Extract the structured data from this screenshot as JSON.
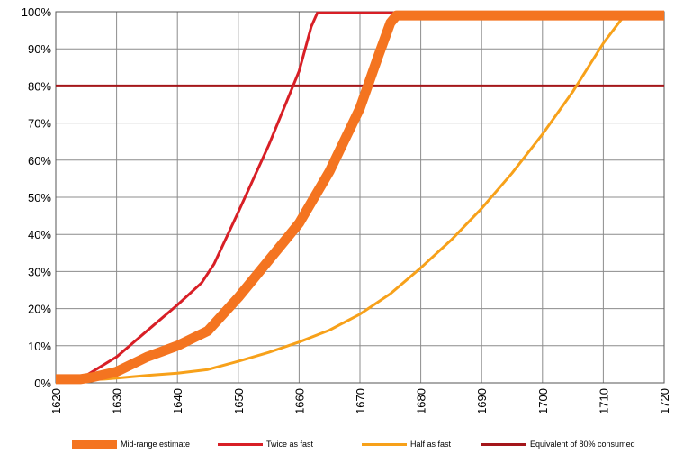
{
  "chart_data": {
    "type": "line",
    "x_range": [
      1620,
      1720
    ],
    "y_range": [
      0,
      100
    ],
    "x_ticks": [
      1620,
      1630,
      1640,
      1650,
      1660,
      1670,
      1680,
      1690,
      1700,
      1710,
      1720
    ],
    "y_ticks": [
      0,
      10,
      20,
      30,
      40,
      50,
      60,
      70,
      80,
      90,
      100
    ],
    "y_tick_labels": [
      "0%",
      "10%",
      "20%",
      "30%",
      "40%",
      "50%",
      "60%",
      "70%",
      "80%",
      "90%",
      "100%"
    ],
    "grid": true,
    "legend_position": "bottom",
    "series": [
      {
        "name": "Mid-range estimate",
        "color": "#f47420",
        "style": "thick",
        "x": [
          1620,
          1624,
          1626,
          1630,
          1635,
          1640,
          1645,
          1650,
          1655,
          1660,
          1665,
          1670,
          1673,
          1675,
          1676,
          1700,
          1720
        ],
        "y": [
          1,
          1,
          1.5,
          3,
          7,
          10,
          14,
          23,
          33,
          43,
          57,
          74,
          88,
          97,
          99,
          99,
          99
        ]
      },
      {
        "name": "Twice as fast",
        "color": "#d81f26",
        "style": "medium",
        "x": [
          1620,
          1623,
          1625,
          1630,
          1635,
          1640,
          1644,
          1646,
          1650,
          1655,
          1660,
          1662,
          1663,
          1664,
          1720
        ],
        "y": [
          1,
          1,
          2,
          7,
          14,
          21,
          27,
          32,
          46,
          64,
          84,
          96,
          99.7,
          99.7,
          99.7
        ]
      },
      {
        "name": "Half as fast",
        "color": "#f7a11a",
        "style": "medium",
        "x": [
          1620,
          1628,
          1635,
          1640,
          1645,
          1650,
          1655,
          1660,
          1665,
          1670,
          1675,
          1680,
          1685,
          1690,
          1695,
          1700,
          1705,
          1710,
          1713,
          1714,
          1720
        ],
        "y": [
          0.5,
          1,
          2,
          2.6,
          3.6,
          5.8,
          8.2,
          11,
          14.2,
          18.5,
          24,
          31,
          38.5,
          47,
          56.5,
          67,
          78.5,
          91.5,
          98,
          99.5,
          99.5
        ]
      },
      {
        "name": "Equivalent of 80% consumed",
        "color": "#a4161a",
        "style": "medium",
        "x": [
          1620,
          1720
        ],
        "y": [
          80,
          80
        ]
      }
    ]
  }
}
